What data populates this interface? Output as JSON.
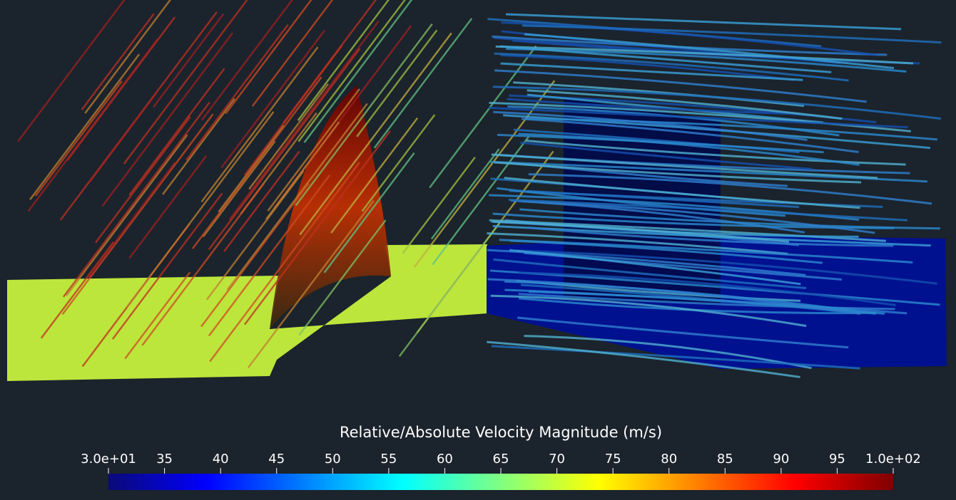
{
  "chart_data": {
    "type": "colorbar",
    "title": "Relative/Absolute Velocity Magnitude (m/s)",
    "xlim": [
      30,
      100
    ],
    "xticks": [
      {
        "value": 30,
        "label": "3.0e+01"
      },
      35,
      40,
      45,
      50,
      55,
      60,
      65,
      70,
      75,
      80,
      85,
      90,
      95,
      {
        "value": 100,
        "label": "1.0e+02"
      }
    ],
    "colors": [
      "#0a0a78",
      "#0000ff",
      "#0080ff",
      "#00ffff",
      "#80ff80",
      "#ffff00",
      "#ff8000",
      "#ff0000",
      "#7f0000"
    ]
  }
}
